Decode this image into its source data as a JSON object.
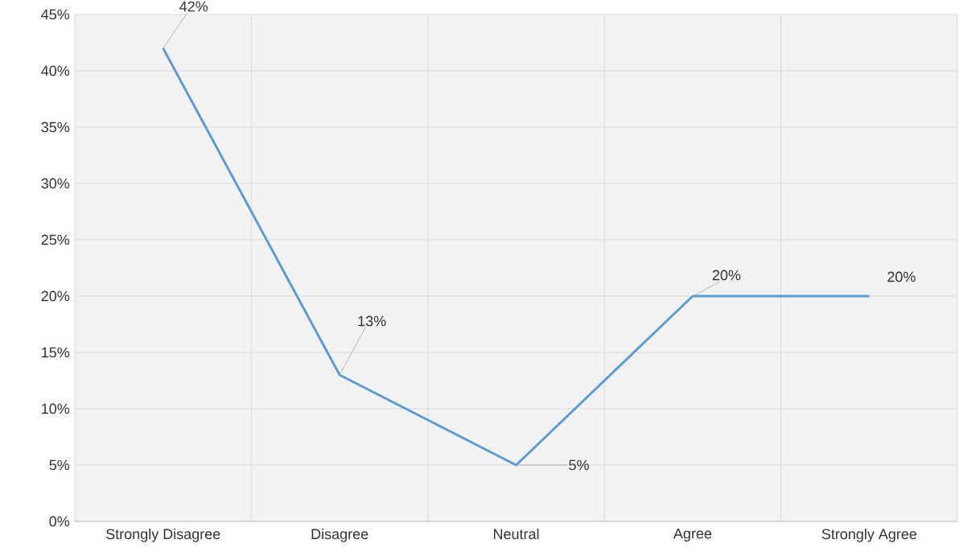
{
  "chart_data": {
    "type": "line",
    "categories": [
      "Strongly Disagree",
      "Disagree",
      "Neutral",
      "Agree",
      "Strongly Agree"
    ],
    "series": [
      {
        "color": "#5b9bd5",
        "values": [
          42,
          13,
          5,
          20,
          20
        ],
        "value_labels": [
          "42%",
          "13%",
          "5%",
          "20%",
          "20%"
        ]
      }
    ],
    "ylim": [
      0,
      45
    ],
    "yticks": [
      {
        "value": 0,
        "label": "0%"
      },
      {
        "value": 5,
        "label": "5%"
      },
      {
        "value": 10,
        "label": "10%"
      },
      {
        "value": 15,
        "label": "15%"
      },
      {
        "value": 20,
        "label": "20%"
      },
      {
        "value": 25,
        "label": "25%"
      },
      {
        "value": 30,
        "label": "30%"
      },
      {
        "value": 35,
        "label": "35%"
      },
      {
        "value": 40,
        "label": "40%"
      },
      {
        "value": 45,
        "label": "45%"
      }
    ],
    "grid": true,
    "marker": "none",
    "line_style": "solid"
  }
}
